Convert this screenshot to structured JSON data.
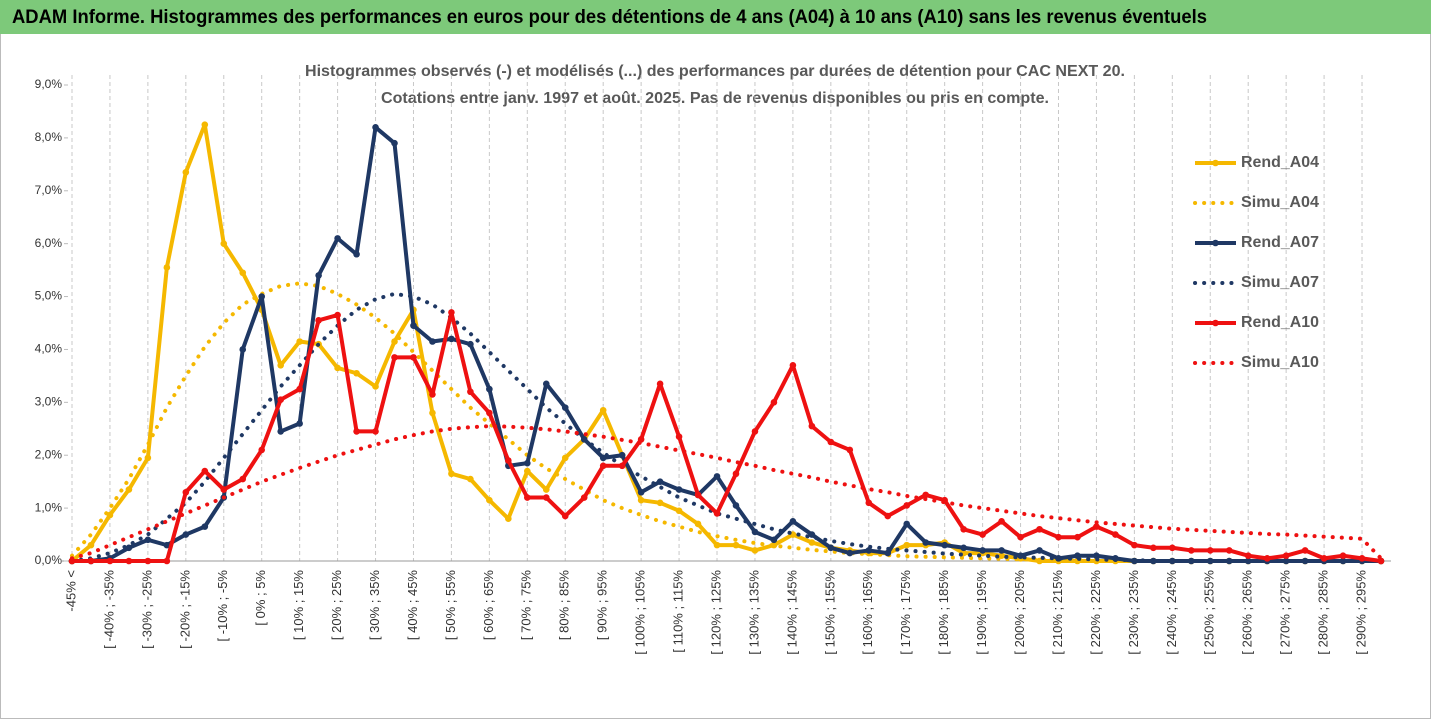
{
  "header": {
    "title": "ADAM Informe. Histogrammes des performances en euros pour des détentions de 4 ans (A04) à 10 ans (A10) sans les revenus éventuels"
  },
  "chart_data": {
    "type": "line",
    "title": [
      "Histogrammes observés (-) et modélisés (...) des performances par durées de détention pour CAC NEXT 20.",
      "Cotations entre janv. 1997 et août. 2025. Pas de revenus disponibles ou pris en compte."
    ],
    "categories": [
      "-45% <",
      null,
      "[ -40% ; -35%",
      null,
      "[ -30% ; -25%",
      null,
      "[ -20% ; -15%",
      null,
      "[ -10% ; -5%",
      null,
      "[ 0% ; 5%",
      null,
      "[ 10% ; 15%",
      null,
      "[ 20% ; 25%",
      null,
      "[ 30% ; 35%",
      null,
      "[ 40% ; 45%",
      null,
      "[ 50% ; 55%",
      null,
      "[ 60% ; 65%",
      null,
      "[ 70% ; 75%",
      null,
      "[ 80% ; 85%",
      null,
      "[ 90% ; 95%",
      null,
      "[ 100% ; 105%",
      null,
      "[ 110% ; 115%",
      null,
      "[ 120% ; 125%",
      null,
      "[ 130% ; 135%",
      null,
      "[ 140% ; 145%",
      null,
      "[ 150% ; 155%",
      null,
      "[ 160% ; 165%",
      null,
      "[ 170% ; 175%",
      null,
      "[ 180% ; 185%",
      null,
      "[ 190% ; 195%",
      null,
      "[ 200% ; 205%",
      null,
      "[ 210% ; 215%",
      null,
      "[ 220% ; 225%",
      null,
      "[ 230% ; 235%",
      null,
      "[ 240% ; 245%",
      null,
      "[ 250% ; 255%",
      null,
      "[ 260% ; 265%",
      null,
      "[ 270% ; 275%",
      null,
      "[ 280% ; 285%",
      null,
      "[ 290% ; 295%",
      null
    ],
    "series": [
      {
        "name": "Rend_A04",
        "color": "#f5b800",
        "style": "solid",
        "marker": true,
        "values": [
          0,
          0.3,
          0.87,
          1.35,
          1.95,
          5.55,
          7.35,
          8.25,
          6.0,
          5.45,
          4.75,
          3.7,
          4.15,
          4.1,
          3.65,
          3.55,
          3.3,
          4.15,
          4.75,
          2.8,
          1.65,
          1.55,
          1.15,
          0.8,
          1.7,
          1.35,
          1.95,
          2.3,
          2.85,
          2.0,
          1.15,
          1.1,
          0.95,
          0.7,
          0.3,
          0.3,
          0.2,
          0.3,
          0.5,
          0.35,
          0.25,
          0.2,
          0.15,
          0.15,
          0.3,
          0.3,
          0.35,
          0.15,
          0.15,
          0.1,
          0.05,
          0,
          0,
          0,
          0,
          0,
          0,
          0,
          0,
          0,
          0,
          0,
          0,
          0,
          0,
          0,
          0,
          0,
          0,
          0
        ]
      },
      {
        "name": "Simu_A04",
        "color": "#f5b800",
        "style": "dotted",
        "marker": false,
        "values": [
          0.1,
          0.5,
          1.0,
          1.55,
          2.2,
          2.9,
          3.5,
          4.05,
          4.5,
          4.85,
          5.05,
          5.2,
          5.25,
          5.2,
          5.05,
          4.85,
          4.6,
          4.3,
          3.95,
          3.6,
          3.25,
          2.9,
          2.6,
          2.3,
          2.0,
          1.75,
          1.55,
          1.35,
          1.15,
          1.0,
          0.87,
          0.75,
          0.65,
          0.55,
          0.47,
          0.4,
          0.34,
          0.29,
          0.25,
          0.21,
          0.18,
          0.15,
          0.13,
          0.11,
          0.09,
          0.08,
          0.07,
          0.06,
          0.05,
          0.04,
          0.03,
          0.03,
          0.02,
          0.02,
          0.01,
          0,
          0,
          0,
          0,
          0,
          0,
          0,
          0,
          0,
          0,
          0,
          0,
          0,
          0,
          0
        ]
      },
      {
        "name": "Rend_A07",
        "color": "#1f3864",
        "style": "solid",
        "marker": true,
        "values": [
          0,
          0,
          0.05,
          0.25,
          0.4,
          0.3,
          0.5,
          0.65,
          1.2,
          4.0,
          5.0,
          2.45,
          2.6,
          5.4,
          6.1,
          5.8,
          8.2,
          7.9,
          4.45,
          4.15,
          4.2,
          4.1,
          3.25,
          1.8,
          1.85,
          3.35,
          2.9,
          2.3,
          1.95,
          2.0,
          1.3,
          1.5,
          1.35,
          1.25,
          1.6,
          1.05,
          0.55,
          0.4,
          0.75,
          0.5,
          0.25,
          0.15,
          0.2,
          0.15,
          0.7,
          0.35,
          0.3,
          0.25,
          0.2,
          0.2,
          0.1,
          0.2,
          0.05,
          0.1,
          0.1,
          0.05,
          0,
          0,
          0,
          0,
          0,
          0,
          0,
          0,
          0,
          0,
          0,
          0,
          0,
          0
        ]
      },
      {
        "name": "Simu_A07",
        "color": "#1f3864",
        "style": "dotted",
        "marker": false,
        "values": [
          0,
          0.05,
          0.15,
          0.3,
          0.5,
          0.8,
          1.1,
          1.5,
          1.95,
          2.4,
          2.85,
          3.3,
          3.7,
          4.1,
          4.45,
          4.75,
          4.95,
          5.05,
          5.0,
          4.85,
          4.6,
          4.3,
          3.95,
          3.6,
          3.25,
          2.9,
          2.6,
          2.3,
          2.05,
          1.8,
          1.6,
          1.4,
          1.2,
          1.05,
          0.9,
          0.8,
          0.7,
          0.6,
          0.52,
          0.45,
          0.38,
          0.32,
          0.27,
          0.23,
          0.2,
          0.17,
          0.14,
          0.12,
          0.1,
          0.08,
          0.07,
          0.06,
          0.05,
          0.04,
          0.03,
          0.02,
          0.02,
          0,
          0,
          0,
          0,
          0,
          0,
          0,
          0,
          0,
          0,
          0,
          0,
          0
        ]
      },
      {
        "name": "Rend_A10",
        "color": "#ee1111",
        "style": "solid",
        "marker": true,
        "values": [
          0,
          0,
          0,
          0,
          0,
          0,
          1.3,
          1.7,
          1.35,
          1.55,
          2.1,
          3.05,
          3.25,
          4.55,
          4.65,
          2.45,
          2.45,
          3.85,
          3.85,
          3.15,
          4.7,
          3.2,
          2.8,
          1.9,
          1.2,
          1.2,
          0.85,
          1.2,
          1.8,
          1.8,
          2.3,
          3.35,
          2.35,
          1.25,
          0.9,
          1.65,
          2.45,
          3.0,
          3.7,
          2.55,
          2.25,
          2.1,
          1.1,
          0.85,
          1.05,
          1.25,
          1.15,
          0.6,
          0.5,
          0.75,
          0.45,
          0.6,
          0.45,
          0.45,
          0.65,
          0.5,
          0.3,
          0.25,
          0.25,
          0.2,
          0.2,
          0.2,
          0.1,
          0.05,
          0.1,
          0.2,
          0.05,
          0.1,
          0.05,
          0
        ]
      },
      {
        "name": "Simu_A10",
        "color": "#ee1111",
        "style": "dotted",
        "marker": false,
        "values": [
          0.05,
          0.15,
          0.3,
          0.45,
          0.6,
          0.75,
          0.9,
          1.05,
          1.2,
          1.35,
          1.5,
          1.63,
          1.76,
          1.88,
          2.0,
          2.1,
          2.2,
          2.3,
          2.38,
          2.45,
          2.5,
          2.53,
          2.55,
          2.54,
          2.52,
          2.49,
          2.45,
          2.4,
          2.35,
          2.29,
          2.23,
          2.16,
          2.09,
          2.02,
          1.95,
          1.87,
          1.8,
          1.72,
          1.65,
          1.58,
          1.5,
          1.43,
          1.36,
          1.3,
          1.23,
          1.17,
          1.11,
          1.05,
          1.0,
          0.95,
          0.9,
          0.85,
          0.81,
          0.77,
          0.73,
          0.7,
          0.67,
          0.64,
          0.61,
          0.59,
          0.57,
          0.55,
          0.53,
          0.51,
          0.5,
          0.48,
          0.46,
          0.44,
          0.42,
          0.05
        ]
      }
    ],
    "ylim": [
      0,
      9
    ],
    "yticks": [
      {
        "value": 0,
        "label": "0,0%"
      },
      {
        "value": 1,
        "label": "1,0%"
      },
      {
        "value": 2,
        "label": "2,0%"
      },
      {
        "value": 3,
        "label": "3,0%"
      },
      {
        "value": 4,
        "label": "4,0%"
      },
      {
        "value": 5,
        "label": "5,0%"
      },
      {
        "value": 6,
        "label": "6,0%"
      },
      {
        "value": 7,
        "label": "7,0%"
      },
      {
        "value": 8,
        "label": "8,0%"
      },
      {
        "value": 9,
        "label": "9,0%"
      }
    ],
    "grid": "x",
    "legend": "right"
  }
}
